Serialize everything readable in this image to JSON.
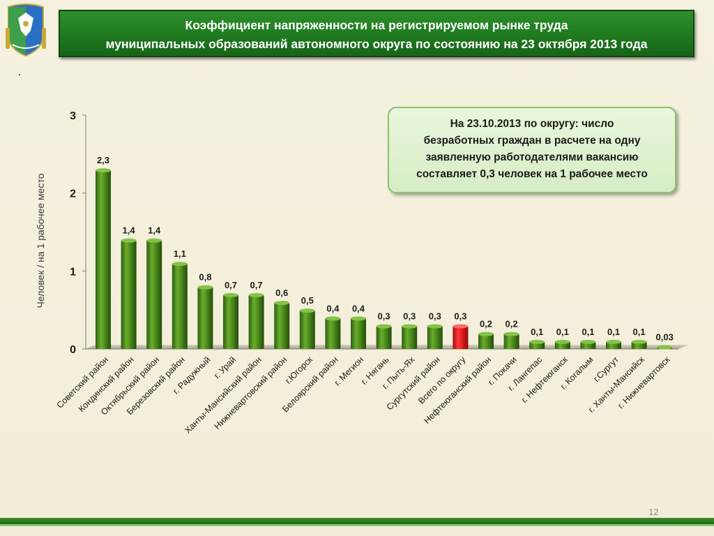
{
  "header": {
    "line1": "Коэффициент напряженности на регистрируемом рынке труда",
    "line2": "муниципальных образований автономного округа по состоянию на 23 октября 2013 года"
  },
  "callout": {
    "line1": "На 23.10.2013 по округу: число",
    "line2": "безработных граждан в расчете на одну",
    "line3": "заявленную работодателями вакансию",
    "line4": "составляет 0,3 человек на 1 рабочее место"
  },
  "page_number": "12",
  "emblem": {
    "icon": "coat-of-arms-icon"
  },
  "chart_data": {
    "type": "bar",
    "ylabel": "Человек / на 1 рабочее место",
    "ylim": [
      0,
      3
    ],
    "yticks": [
      0,
      1,
      2,
      3
    ],
    "ytick_labels": [
      "0",
      "1",
      "2",
      "3"
    ],
    "grid": false,
    "colors": {
      "default": "#4a8a1c",
      "highlight": "#e41b1b"
    },
    "categories": [
      "Советский район",
      "Кондинский район",
      "Октябрьский район",
      "Березовский район",
      "г. Радужный",
      "г. Урай",
      "Ханты-Мансийский район",
      "Нижневартовский район",
      "г.Югорск",
      "Белоярский район",
      "г. Мегион",
      "г. Нягань",
      "г. Пыть-Ях",
      "Сургутский район",
      "Всего по округу",
      "Нефтеюганский район",
      "г. Покачи",
      "г. Лангепас",
      "г. Нефтеюганск",
      "г. Когалым",
      "г.Сургут",
      "г. Ханты-Мансийск",
      "г. Нижневартовск"
    ],
    "values": [
      2.3,
      1.4,
      1.4,
      1.1,
      0.8,
      0.7,
      0.7,
      0.6,
      0.5,
      0.4,
      0.4,
      0.3,
      0.3,
      0.3,
      0.3,
      0.2,
      0.2,
      0.1,
      0.1,
      0.1,
      0.1,
      0.1,
      0.03
    ],
    "value_labels": [
      "2,3",
      "1,4",
      "1,4",
      "1,1",
      "0,8",
      "0,7",
      "0,7",
      "0,6",
      "0,5",
      "0,4",
      "0,4",
      "0,3",
      "0,3",
      "0,3",
      "0,3",
      "0,2",
      "0,2",
      "0,1",
      "0,1",
      "0,1",
      "0,1",
      "0,1",
      "0,03"
    ],
    "highlight_category": "Всего по округу"
  }
}
